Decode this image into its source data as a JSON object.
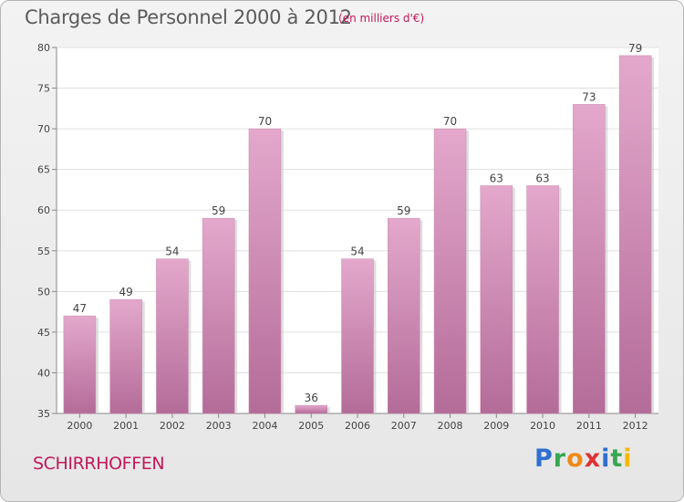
{
  "header": {
    "title": "Charges de Personnel 2000 à 2012",
    "subtitle": "(en milliers d'€)"
  },
  "footer": {
    "place": "SCHIRRHOFFEN",
    "logo": "Proxiti"
  },
  "colors": {
    "bar_top": "#e4a8cc",
    "bar_bottom": "#b36c98",
    "title": "#5b5b5b",
    "accent": "#c2185b"
  },
  "chart_data": {
    "type": "bar",
    "title": "Charges de Personnel 2000 à 2012",
    "subtitle": "(en milliers d'€)",
    "categories": [
      "2000",
      "2001",
      "2002",
      "2003",
      "2004",
      "2005",
      "2006",
      "2007",
      "2008",
      "2009",
      "2010",
      "2011",
      "2012"
    ],
    "values": [
      47,
      49,
      54,
      59,
      70,
      36,
      54,
      59,
      70,
      63,
      63,
      73,
      79
    ],
    "ylim": [
      35,
      80
    ],
    "yticks": [
      35,
      40,
      45,
      50,
      55,
      60,
      65,
      70,
      75,
      80
    ],
    "grid": true,
    "legend": "none",
    "data_labels": true
  }
}
